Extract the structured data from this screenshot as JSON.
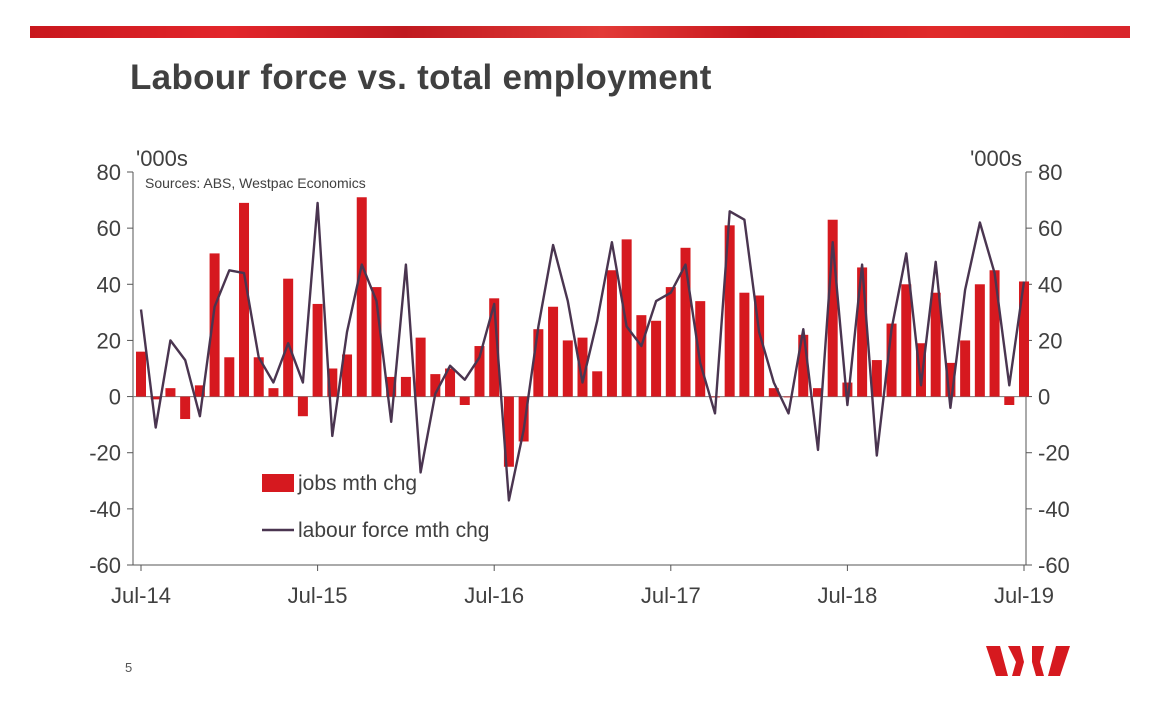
{
  "slide": {
    "title": "Labour force vs. total employment",
    "page_number": "5"
  },
  "chart_data": {
    "type": "bar",
    "title": "Labour force vs. total employment",
    "source": "Sources: ABS, Westpac Economics",
    "y_unit_left": "'000s",
    "y_unit_right": "'000s",
    "ylim": [
      -60,
      80
    ],
    "yticks": [
      -60,
      -40,
      -20,
      0,
      20,
      40,
      60,
      80
    ],
    "ytick_labels": [
      "-60",
      "-40",
      "-20",
      "0",
      "20",
      "40",
      "60",
      "80"
    ],
    "xticks": [
      {
        "index": 0,
        "label": "Jul-14"
      },
      {
        "index": 12,
        "label": "Jul-15"
      },
      {
        "index": 24,
        "label": "Jul-16"
      },
      {
        "index": 36,
        "label": "Jul-17"
      },
      {
        "index": 48,
        "label": "Jul-18"
      },
      {
        "index": 60,
        "label": "Jul-19"
      }
    ],
    "legend_position": "lower-left",
    "colors": {
      "bar": "#d6191f",
      "line": "#4a3550",
      "axis": "#555555"
    },
    "series": [
      {
        "name": "jobs mth chg",
        "type": "bar",
        "values": [
          16,
          -1,
          3,
          -8,
          4,
          51,
          14,
          69,
          14,
          3,
          42,
          -7,
          33,
          10,
          15,
          71,
          39,
          7,
          7,
          21,
          8,
          10,
          -3,
          18,
          35,
          -25,
          -16,
          24,
          32,
          20,
          21,
          9,
          45,
          56,
          29,
          27,
          39,
          53,
          34,
          0,
          61,
          37,
          36,
          3,
          0,
          22,
          3,
          63,
          5,
          46,
          13,
          26,
          40,
          19,
          37,
          12,
          20,
          40,
          45,
          -3,
          41
        ]
      },
      {
        "name": "labour force mth chg",
        "type": "line",
        "values": [
          31,
          -11,
          20,
          13,
          -7,
          32,
          45,
          44,
          14,
          5,
          19,
          5,
          69,
          -14,
          23,
          47,
          34,
          -9,
          47,
          -27,
          1,
          11,
          6,
          14,
          33,
          -37,
          -12,
          25,
          54,
          34,
          5,
          27,
          55,
          25,
          18,
          34,
          37,
          47,
          12,
          -6,
          66,
          63,
          23,
          5,
          -6,
          24,
          -19,
          55,
          -3,
          47,
          -21,
          24,
          51,
          4,
          48,
          -4,
          38,
          62,
          44,
          4,
          41
        ]
      }
    ]
  }
}
